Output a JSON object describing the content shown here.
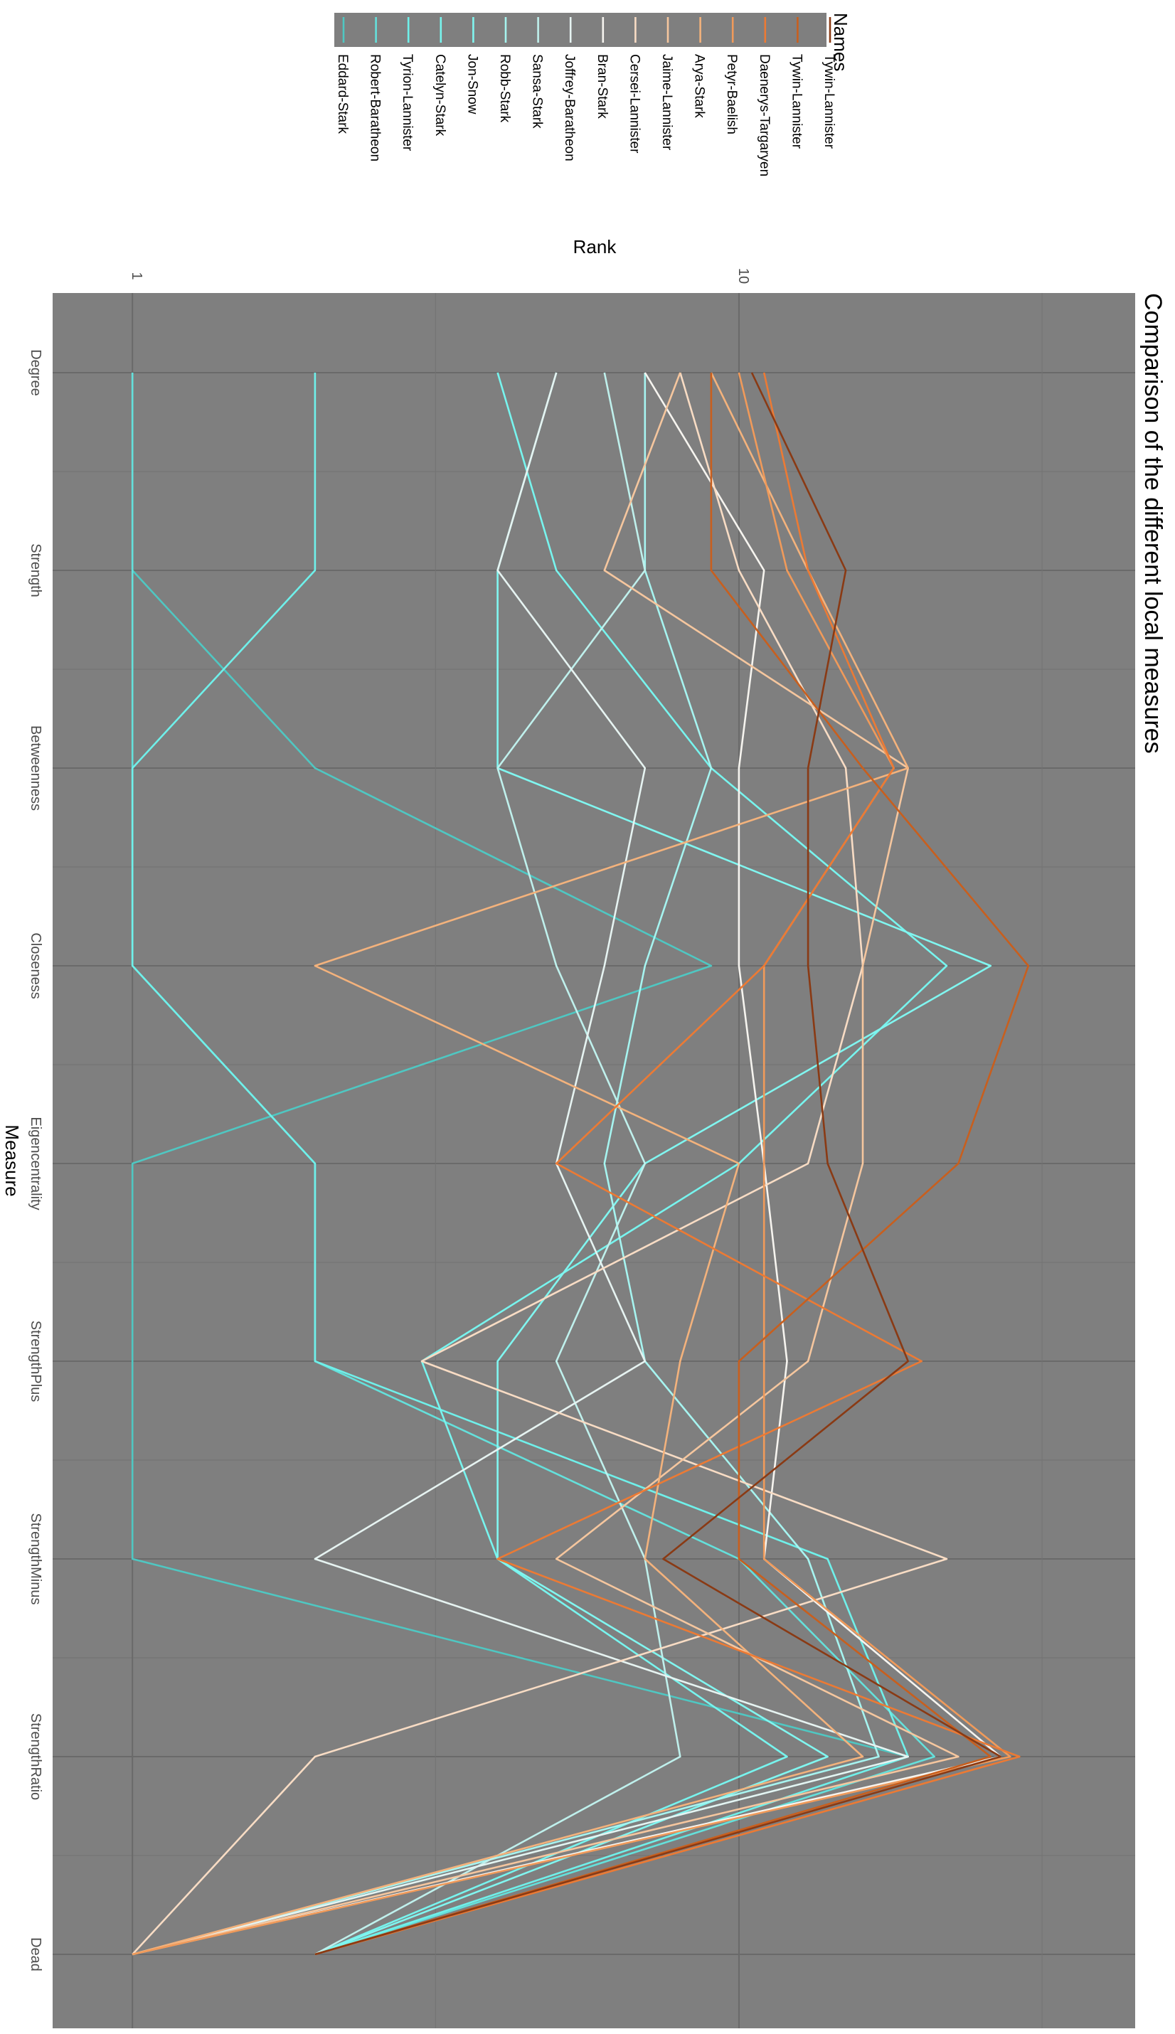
{
  "chart_data": {
    "type": "line",
    "title": "Comparison of the different local measures",
    "xlabel": "Measure",
    "ylabel": "Rank",
    "y_scale": "log",
    "ylim": [
      0.89,
      45
    ],
    "y_ticks": [
      {
        "value": 1,
        "label": "1"
      },
      {
        "value": 10,
        "label": "10"
      }
    ],
    "categories": [
      "Degree",
      "Strength",
      "Betweenness",
      "Closeness",
      "Eigencentrality",
      "StrengthPlus",
      "StrengthMinus",
      "StrengthRatio",
      "Dead"
    ],
    "legend": {
      "title": "Names",
      "position": "top"
    },
    "grid": true,
    "series": [
      {
        "name": "Eddard-Stark",
        "color": "#4fc7c2",
        "values": [
          1,
          1,
          2,
          9,
          1,
          1,
          1,
          19,
          1
        ]
      },
      {
        "name": "Robert-Baratheon",
        "color": "#64e0db",
        "values": [
          1,
          1,
          1,
          1,
          2,
          2,
          10,
          21,
          2
        ]
      },
      {
        "name": "Tyrion-Lannister",
        "color": "#6ff0ea",
        "values": [
          2,
          2,
          1,
          1,
          2,
          2,
          14,
          19,
          2
        ]
      },
      {
        "name": "Catelyn-Stark",
        "color": "#77f4ee",
        "values": [
          4,
          5,
          9,
          22,
          10,
          3,
          4,
          12,
          2
        ]
      },
      {
        "name": "Jon-Snow",
        "color": "#80f6f0",
        "values": [
          5,
          4,
          4,
          26,
          7,
          4,
          4,
          14,
          2
        ]
      },
      {
        "name": "Robb-Stark",
        "color": "#a6f4f0",
        "values": [
          7,
          7,
          9,
          7,
          6,
          7,
          13,
          17,
          1
        ]
      },
      {
        "name": "Sansa-Stark",
        "color": "#bff0ec",
        "values": [
          6,
          7,
          4,
          5,
          7,
          5,
          7,
          8,
          2
        ]
      },
      {
        "name": "Joffrey-Baratheon",
        "color": "#e6f3f1",
        "values": [
          5,
          4,
          7,
          6,
          5,
          7,
          2,
          19,
          1
        ]
      },
      {
        "name": "Bran-Stark",
        "color": "#f6f4ef",
        "values": [
          7,
          11,
          10,
          10,
          11,
          12,
          11,
          27,
          1
        ]
      },
      {
        "name": "Cersei-Lannister",
        "color": "#f8dcc4",
        "values": [
          8,
          10,
          15,
          16,
          13,
          3,
          22,
          2,
          1
        ]
      },
      {
        "name": "Jaime-Lannister",
        "color": "#f5c69e",
        "values": [
          8,
          6,
          19,
          16,
          16,
          13,
          5,
          23,
          1
        ]
      },
      {
        "name": "Arya-Stark",
        "color": "#f3b27c",
        "values": [
          9,
          13,
          19,
          2,
          10,
          8,
          7,
          16,
          1
        ]
      },
      {
        "name": "Petyr-Baelish",
        "color": "#f09a5a",
        "values": [
          10,
          12,
          18,
          11,
          11,
          11,
          11,
          28,
          1
        ]
      },
      {
        "name": "Daenerys-Targaryen",
        "color": "#ec7a34",
        "values": [
          11,
          13,
          18,
          11,
          5,
          20,
          4,
          29,
          2
        ]
      },
      {
        "name": "Tywin-Lannister",
        "color": "#c85f1e",
        "values": [
          9,
          9,
          16,
          30,
          23,
          10,
          10,
          26,
          2
        ]
      },
      {
        "name": "Tywin-Lannister",
        "color": "#8a3a14",
        "values": [
          10.5,
          15,
          13,
          13,
          14,
          19,
          7.5,
          27,
          2
        ]
      }
    ]
  }
}
